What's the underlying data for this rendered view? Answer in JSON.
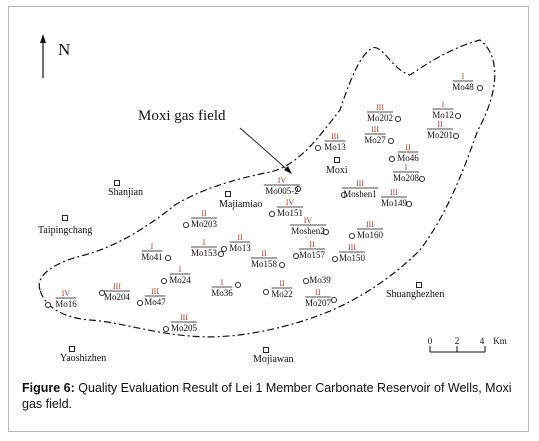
{
  "north_label": "N",
  "field_label": "Moxi gas field",
  "towns": [
    {
      "name": "Shanjian"
    },
    {
      "name": "Majiamiao"
    },
    {
      "name": "Taipingchang"
    },
    {
      "name": "Moxi"
    },
    {
      "name": "Shuanghezhen"
    },
    {
      "name": "Yaoshizhen"
    },
    {
      "name": "Mojiawan"
    }
  ],
  "wells": [
    {
      "name": "Mo48",
      "grade": "I"
    },
    {
      "name": "Mo12",
      "grade": "I"
    },
    {
      "name": "Mo202",
      "grade": "III"
    },
    {
      "name": "Mo201",
      "grade": "II"
    },
    {
      "name": "Mo13",
      "grade": "III"
    },
    {
      "name": "Mo27",
      "grade": "III"
    },
    {
      "name": "Mo46",
      "grade": "II"
    },
    {
      "name": "Mo208",
      "grade": "I"
    },
    {
      "name": "Moshen1",
      "grade": "III"
    },
    {
      "name": "Mo149",
      "grade": "III"
    },
    {
      "name": "Mo005-2",
      "grade": "IV"
    },
    {
      "name": "Mo151",
      "grade": "IV"
    },
    {
      "name": "Mo203",
      "grade": "II"
    },
    {
      "name": "Moshen2",
      "grade": "IV"
    },
    {
      "name": "Mo160",
      "grade": "III"
    },
    {
      "name": "Mo41",
      "grade": "I"
    },
    {
      "name": "Mo153",
      "grade": "I"
    },
    {
      "name": "Mo13",
      "grade": "II"
    },
    {
      "name": "Mo158",
      "grade": "II"
    },
    {
      "name": "Mo157",
      "grade": "II"
    },
    {
      "name": "Mo150",
      "grade": "III"
    },
    {
      "name": "Mo24",
      "grade": "I"
    },
    {
      "name": "Mo39",
      "grade": ""
    },
    {
      "name": "Mo36",
      "grade": "I"
    },
    {
      "name": "Mo22",
      "grade": "II"
    },
    {
      "name": "Mo207",
      "grade": "II"
    },
    {
      "name": "Mo16",
      "grade": "IV"
    },
    {
      "name": "Mo204",
      "grade": "III"
    },
    {
      "name": "Mo47",
      "grade": "III"
    },
    {
      "name": "Mo205",
      "grade": "III"
    }
  ],
  "scale": {
    "ticks": [
      "0",
      "2",
      "4"
    ],
    "unit": "Km"
  },
  "caption": {
    "label": "Figure 6:",
    "text": "Quality Evaluation Result of Lei 1 Member Carbonate Reservoir of Wells, Moxi gas field."
  }
}
